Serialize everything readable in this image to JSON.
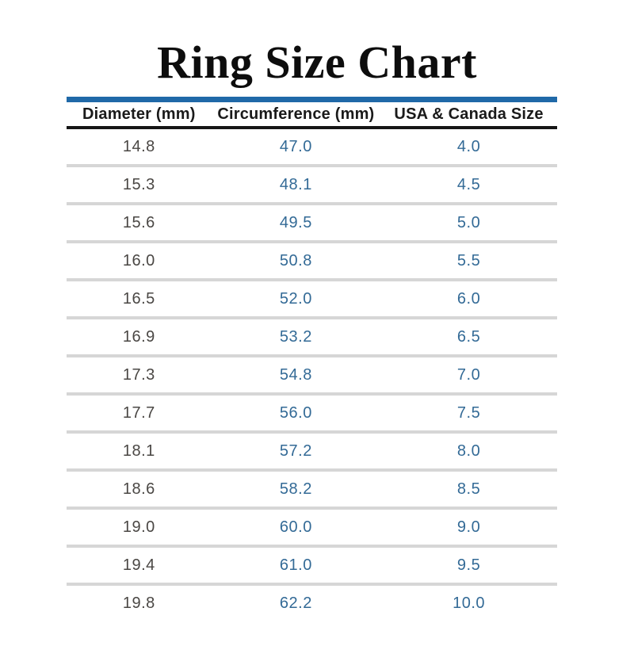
{
  "title": "Ring Size Chart",
  "colors": {
    "accent_line": "#2069a8",
    "header_rule": "#151515",
    "row_divider": "#d6d6d6",
    "diameter_text": "#4a4744",
    "value_text": "#336a96",
    "title_text": "#0d0d0d",
    "header_text": "#1a1a1a",
    "background": "#ffffff"
  },
  "chart_data": {
    "type": "table",
    "title": "Ring Size Chart",
    "columns": [
      "Diameter (mm)",
      "Circumference (mm)",
      "USA & Canada Size"
    ],
    "rows": [
      [
        "14.8",
        "47.0",
        "4.0"
      ],
      [
        "15.3",
        "48.1",
        "4.5"
      ],
      [
        "15.6",
        "49.5",
        "5.0"
      ],
      [
        "16.0",
        "50.8",
        "5.5"
      ],
      [
        "16.5",
        "52.0",
        "6.0"
      ],
      [
        "16.9",
        "53.2",
        "6.5"
      ],
      [
        "17.3",
        "54.8",
        "7.0"
      ],
      [
        "17.7",
        "56.0",
        "7.5"
      ],
      [
        "18.1",
        "57.2",
        "8.0"
      ],
      [
        "18.6",
        "58.2",
        "8.5"
      ],
      [
        "19.0",
        "60.0",
        "9.0"
      ],
      [
        "19.4",
        "61.0",
        "9.5"
      ],
      [
        "19.8",
        "62.2",
        "10.0"
      ]
    ]
  }
}
